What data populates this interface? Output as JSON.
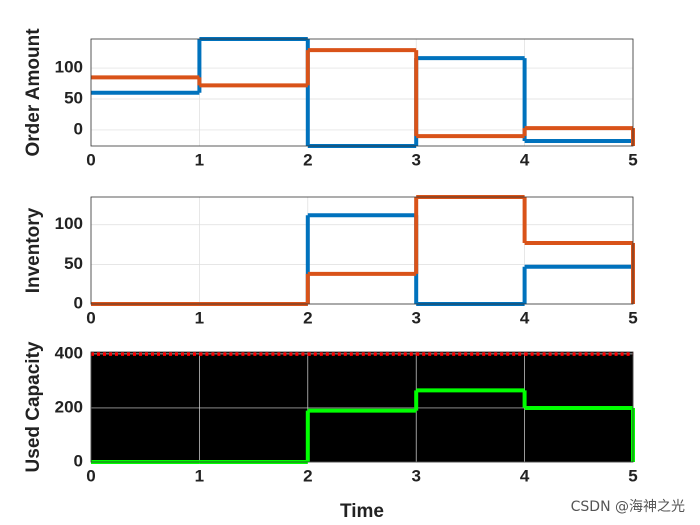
{
  "chart_data": [
    {
      "type": "stairs",
      "ylabel": "Order Amount",
      "x": [
        0,
        1,
        2,
        3,
        4,
        5
      ],
      "xlim": [
        0,
        5
      ],
      "xticks": [
        0,
        1,
        2,
        3,
        4,
        5
      ],
      "ylim": [
        -26,
        147
      ],
      "yticks": [
        0,
        50,
        100
      ],
      "grid": true,
      "background": "#ffffff",
      "series": [
        {
          "color": "#0072BD",
          "style": "solid",
          "values": [
            60,
            147,
            -26,
            116,
            -18,
            0
          ]
        },
        {
          "color": "#D95319",
          "style": "solid",
          "values": [
            85,
            72,
            129,
            -10,
            3,
            -26
          ]
        }
      ]
    },
    {
      "type": "stairs",
      "ylabel": "Inventory",
      "x": [
        0,
        1,
        2,
        3,
        4,
        5
      ],
      "xlim": [
        0,
        5
      ],
      "xticks": [
        0,
        1,
        2,
        3,
        4,
        5
      ],
      "ylim": [
        0,
        135
      ],
      "yticks": [
        0,
        50,
        100
      ],
      "grid": true,
      "background": "#ffffff",
      "series": [
        {
          "color": "#0072BD",
          "style": "solid",
          "values": [
            0,
            0,
            112,
            0,
            47,
            0
          ]
        },
        {
          "color": "#D95319",
          "style": "solid",
          "values": [
            0,
            0,
            38,
            135,
            77,
            0
          ]
        }
      ]
    },
    {
      "type": "stairs",
      "ylabel": "Used Capacity",
      "xlabel": "Time",
      "x": [
        0,
        1,
        2,
        3,
        4,
        5
      ],
      "xlim": [
        0,
        5
      ],
      "xticks": [
        0,
        1,
        2,
        3,
        4,
        5
      ],
      "ylim": [
        0,
        407
      ],
      "yticks": [
        0,
        200,
        400
      ],
      "grid": true,
      "background": "#000000",
      "series": [
        {
          "color": "#FF0000",
          "style": "dotted",
          "values": [
            400,
            400,
            400,
            400,
            400,
            400
          ]
        },
        {
          "color": "#00FF00",
          "style": "solid",
          "values": [
            0,
            0,
            190,
            265,
            200,
            0
          ]
        }
      ]
    }
  ],
  "watermark": "CSDN @海神之光"
}
